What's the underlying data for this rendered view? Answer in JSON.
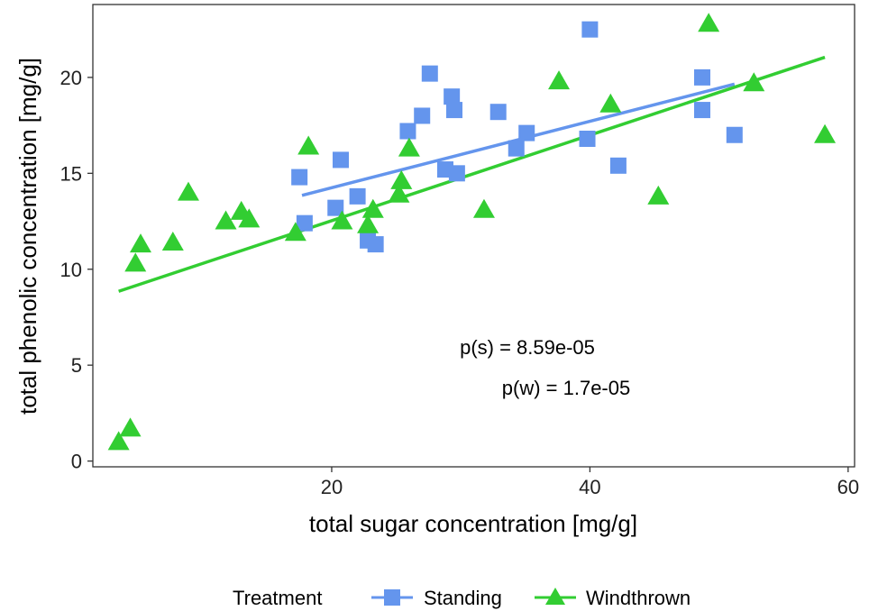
{
  "chart_data": {
    "type": "scatter",
    "xlabel": "total sugar concentration [mg/g]",
    "ylabel": "total phenolic concentration [mg/g]",
    "xlim": [
      1.5,
      60.5
    ],
    "ylim": [
      -0.3,
      23.8
    ],
    "x_ticks": [
      20,
      40,
      60
    ],
    "y_ticks": [
      0,
      5,
      10,
      15,
      20
    ],
    "grid": false,
    "legend_position": "bottom",
    "legend_title": "Treatment",
    "annotations": [
      "p(s) = 8.59e-05",
      "p(w) = 1.7e-05"
    ],
    "series": [
      {
        "name": "Standing",
        "marker": "square",
        "color": "#6495ED",
        "points": [
          [
            17.5,
            14.8
          ],
          [
            17.9,
            12.4
          ],
          [
            20.3,
            13.2
          ],
          [
            20.7,
            15.7
          ],
          [
            22.0,
            13.8
          ],
          [
            22.8,
            11.5
          ],
          [
            23.4,
            11.3
          ],
          [
            25.9,
            17.2
          ],
          [
            27.0,
            18.0
          ],
          [
            27.6,
            20.2
          ],
          [
            28.8,
            15.2
          ],
          [
            29.3,
            19.0
          ],
          [
            29.5,
            18.3
          ],
          [
            29.7,
            15.0
          ],
          [
            32.9,
            18.2
          ],
          [
            34.3,
            16.3
          ],
          [
            35.1,
            17.1
          ],
          [
            39.8,
            16.8
          ],
          [
            40.0,
            22.5
          ],
          [
            42.2,
            15.4
          ],
          [
            48.7,
            20.0
          ],
          [
            48.7,
            18.3
          ],
          [
            51.2,
            17.0
          ]
        ],
        "fit": [
          [
            17.7,
            13.85
          ],
          [
            51.2,
            19.65
          ]
        ]
      },
      {
        "name": "Windthrown",
        "marker": "triangle",
        "color": "#32CD32",
        "points": [
          [
            3.5,
            1.0
          ],
          [
            4.4,
            1.7
          ],
          [
            4.8,
            10.3
          ],
          [
            5.2,
            11.3
          ],
          [
            7.7,
            11.4
          ],
          [
            8.9,
            14.0
          ],
          [
            11.8,
            12.5
          ],
          [
            13.0,
            13.0
          ],
          [
            13.6,
            12.6
          ],
          [
            17.2,
            11.9
          ],
          [
            18.2,
            16.4
          ],
          [
            20.8,
            12.5
          ],
          [
            22.8,
            12.3
          ],
          [
            23.2,
            13.1
          ],
          [
            25.2,
            13.9
          ],
          [
            25.4,
            14.6
          ],
          [
            26.0,
            16.3
          ],
          [
            31.8,
            13.1
          ],
          [
            37.6,
            19.8
          ],
          [
            41.6,
            18.6
          ],
          [
            45.3,
            13.8
          ],
          [
            49.2,
            22.8
          ],
          [
            52.7,
            19.7
          ],
          [
            58.2,
            17.0
          ]
        ],
        "fit": [
          [
            3.5,
            8.85
          ],
          [
            58.2,
            21.05
          ]
        ]
      }
    ]
  }
}
